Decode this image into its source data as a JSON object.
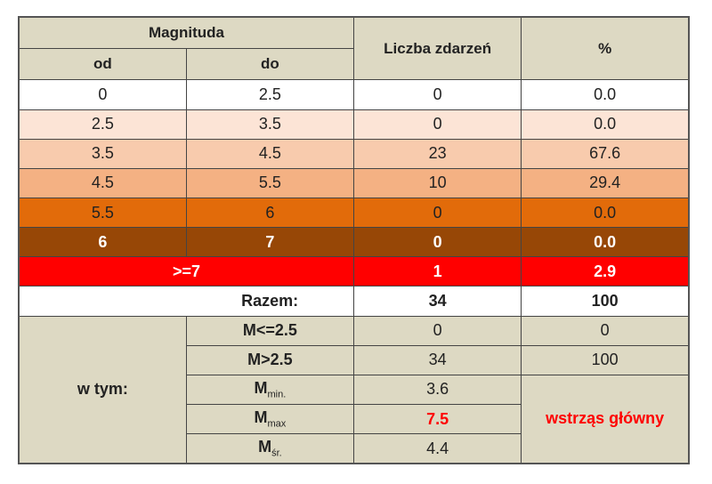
{
  "header": {
    "magnitude": "Magnituda",
    "from": "od",
    "to": "do",
    "count": "Liczba zdarzeń",
    "percent": "%"
  },
  "rows": [
    {
      "from": "0",
      "to": "2.5",
      "count": "0",
      "percent": "0.0"
    },
    {
      "from": "2.5",
      "to": "3.5",
      "count": "0",
      "percent": "0.0"
    },
    {
      "from": "3.5",
      "to": "4.5",
      "count": "23",
      "percent": "67.6"
    },
    {
      "from": "4.5",
      "to": "5.5",
      "count": "10",
      "percent": "29.4"
    },
    {
      "from": "5.5",
      "to": "6",
      "count": "0",
      "percent": "0.0"
    },
    {
      "from": "6",
      "to": "7",
      "count": "0",
      "percent": "0.0"
    }
  ],
  "top_row": {
    "range": ">=7",
    "count": "1",
    "percent": "2.9"
  },
  "total": {
    "label": "Razem:",
    "count": "34",
    "percent": "100"
  },
  "summary": {
    "label": "w tym:",
    "note": "wstrząs główny",
    "items": [
      {
        "label": "M<=2.5",
        "count": "0",
        "percent": "0"
      },
      {
        "label": "M>2.5",
        "count": "34",
        "percent": "100"
      },
      {
        "label": {
          "base": "M",
          "sub": "min."
        },
        "count": "3.6"
      },
      {
        "label": {
          "base": "M",
          "sub": "max"
        },
        "count": "7.5"
      },
      {
        "label": {
          "base": "M",
          "sub": "śr."
        },
        "count": "4.4"
      }
    ]
  }
}
